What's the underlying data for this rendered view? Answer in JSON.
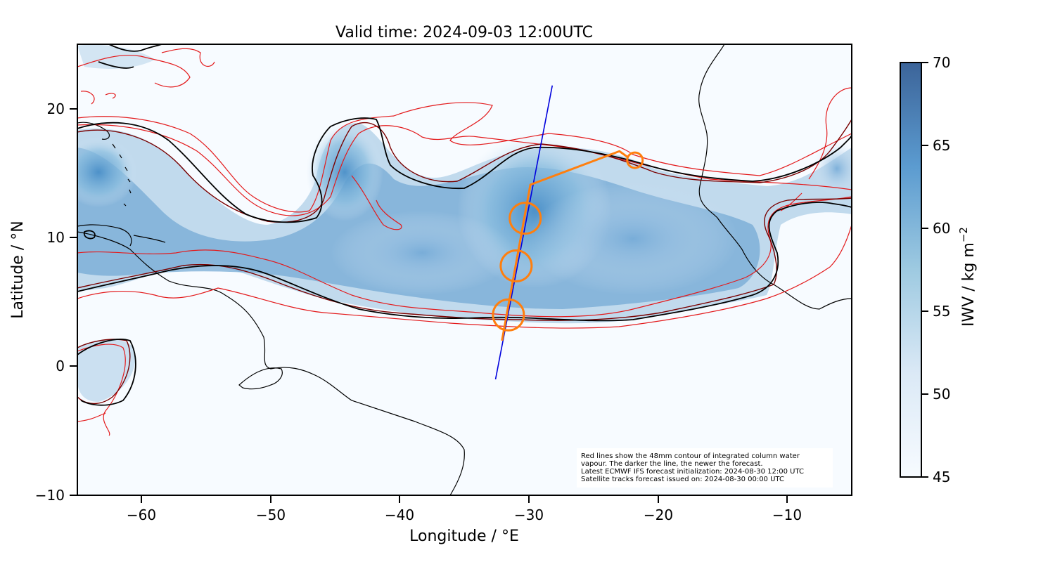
{
  "title": "Valid time: 2024-09-03 12:00UTC",
  "xlabel": "Longitude / °E",
  "ylabel": "Latitude / °N",
  "xticks": [
    "−60",
    "−50",
    "−40",
    "−30",
    "−20",
    "−10"
  ],
  "yticks": [
    "20",
    "10",
    "0",
    "−10"
  ],
  "colorbar": {
    "label_main": "IWV / kg m",
    "label_sup": "−2",
    "ticks": [
      "70",
      "65",
      "60",
      "55",
      "50",
      "45"
    ],
    "color_low": "#f7fbff",
    "color_high": "#3c6499"
  },
  "note_lines": [
    "Red lines show the 48mm contour of integrated column water",
    "vapour. The darker the line, the newer the forecast.",
    "Latest ECMWF IFS forecast initialization: 2024-08-30 12:00 UTC",
    "Satellite tracks forecast issued on: 2024-08-30 00:00 UTC"
  ],
  "colors": {
    "contour_old": "#e31a1c",
    "contour_new": "#000000",
    "contour_mid": "#7a0000",
    "satellite_track": "#0000dd",
    "flight_track": "#ff7f0e",
    "coastline": "#000000"
  },
  "map_data": {
    "extent_lon": [
      -65,
      -5
    ],
    "extent_lat": [
      -10,
      25
    ],
    "satellite_track": [
      [
        -32.6,
        -1.0
      ],
      [
        -28.2,
        21.8
      ]
    ],
    "flight_track": [
      [
        -32.1,
        2.0
      ],
      [
        -29.9,
        14.1
      ],
      [
        -23.0,
        16.7
      ],
      [
        -22.3,
        16.2
      ]
    ],
    "flight_circles": [
      [
        -31.6,
        4.0
      ],
      [
        -31.0,
        7.8
      ],
      [
        -30.3,
        11.5
      ],
      [
        -21.8,
        16.0
      ]
    ],
    "iwv_range": [
      45,
      70
    ]
  }
}
